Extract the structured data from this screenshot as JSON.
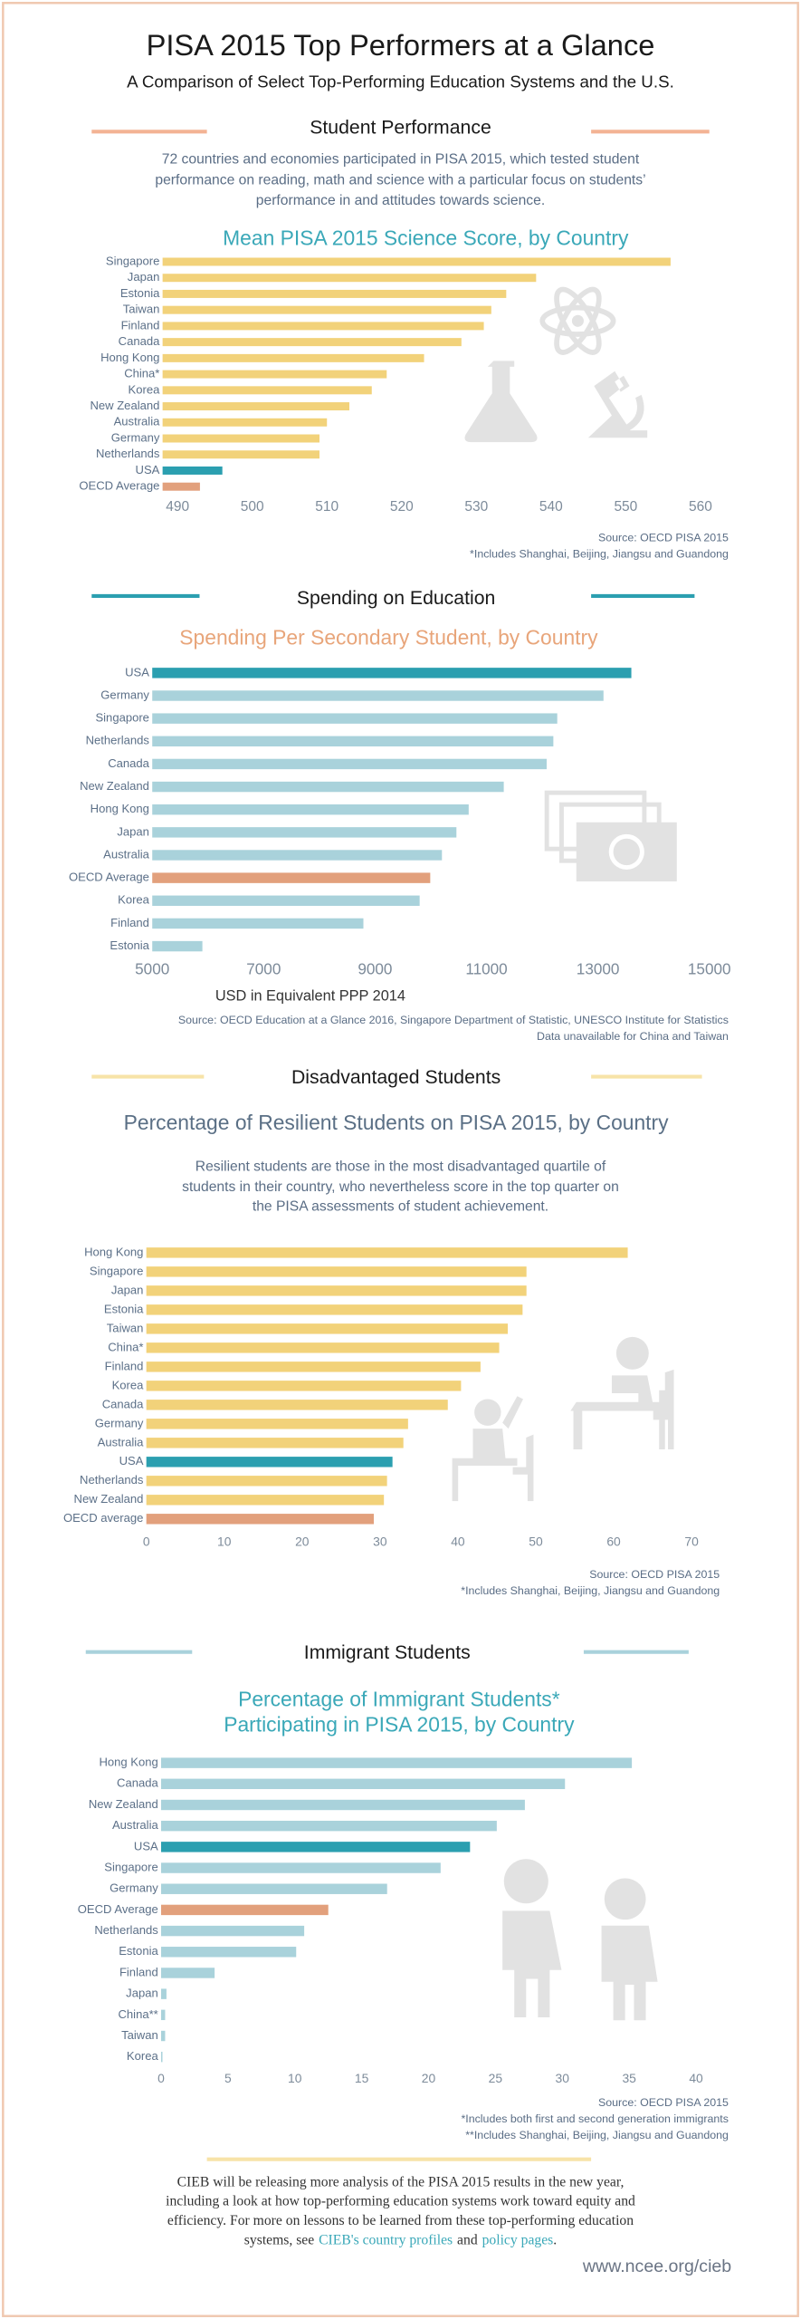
{
  "header": {
    "title": "PISA 2015 Top Performers at a Glance",
    "subtitle": "A Comparison of Select Top-Performing Education Systems and the U.S."
  },
  "sections": [
    {
      "heading": "Student Performance",
      "intro": [
        "72 countries and economies participated in PISA 2015, which tested student",
        "performance on reading, math and science with a particular focus on students’",
        "performance in and attitudes towards science."
      ]
    },
    {
      "heading": "Spending on Education"
    },
    {
      "heading": "Disadvantaged Students"
    },
    {
      "heading": "Immigrant Students"
    }
  ],
  "chart_data": [
    {
      "type": "bar",
      "orientation": "horizontal",
      "title": "Mean PISA 2015 Science Score, by Country",
      "categories": [
        "Singapore",
        "Japan",
        "Estonia",
        "Taiwan",
        "Finland",
        "Canada",
        "Hong Kong",
        "China*",
        "Korea",
        "New Zealand",
        "Australia",
        "Germany",
        "Netherlands",
        "USA",
        "OECD Average"
      ],
      "values": [
        556,
        538,
        534,
        532,
        531,
        528,
        523,
        518,
        516,
        513,
        510,
        509,
        509,
        496,
        493
      ],
      "colors": [
        "#f2d27a",
        "#f2d27a",
        "#f2d27a",
        "#f2d27a",
        "#f2d27a",
        "#f2d27a",
        "#f2d27a",
        "#f2d27a",
        "#f2d27a",
        "#f2d27a",
        "#f2d27a",
        "#f2d27a",
        "#f2d27a",
        "#2b9fb0",
        "#e2a07c"
      ],
      "xlim": [
        488,
        560
      ],
      "xticks": [
        490,
        500,
        510,
        520,
        530,
        540,
        550,
        560
      ],
      "notes": [
        "Source: OECD PISA 2015",
        "*Includes Shanghai, Beijing, Jiangsu and Guandong"
      ]
    },
    {
      "type": "bar",
      "orientation": "horizontal",
      "title": "Spending Per Secondary Student, by Country",
      "categories": [
        "USA",
        "Germany",
        "Singapore",
        "Netherlands",
        "Canada",
        "New Zealand",
        "Hong Kong",
        "Japan",
        "Australia",
        "OECD Average",
        "Korea",
        "Finland",
        "Estonia"
      ],
      "values": [
        13600,
        13100,
        12270,
        12200,
        12080,
        11310,
        10680,
        10460,
        10200,
        9990,
        9800,
        8790,
        5900
      ],
      "colors": [
        "#2b9fb0",
        "#a9d2db",
        "#a9d2db",
        "#a9d2db",
        "#a9d2db",
        "#a9d2db",
        "#a9d2db",
        "#a9d2db",
        "#a9d2db",
        "#e2a07c",
        "#a9d2db",
        "#a9d2db",
        "#a9d2db"
      ],
      "xlim": [
        5000,
        15000
      ],
      "xticks": [
        5000,
        7000,
        9000,
        11000,
        13000,
        15000
      ],
      "x_label": "USD in Equivalent PPP 2014",
      "notes": [
        "Source: OECD Education at a Glance 2016, Singapore Department of Statistic, UNESCO Institute for Statistics",
        "Data unavailable for China and Taiwan"
      ]
    },
    {
      "type": "bar",
      "orientation": "horizontal",
      "title": "Percentage of Resilient Students on PISA 2015, by Country",
      "description": [
        "Resilient students are those in the most disadvantaged quartile of",
        "students in their country, who nevertheless score in the top quarter on",
        "the PISA assessments of student achievement."
      ],
      "categories": [
        "Hong Kong",
        "Singapore",
        "Japan",
        "Estonia",
        "Taiwan",
        "China*",
        "Finland",
        "Korea",
        "Canada",
        "Germany",
        "Australia",
        "USA",
        "Netherlands",
        "New Zealand",
        "OECD average"
      ],
      "values": [
        61.8,
        48.8,
        48.8,
        48.3,
        46.4,
        45.3,
        42.9,
        40.4,
        38.7,
        33.6,
        33.0,
        31.6,
        30.9,
        30.5,
        29.2
      ],
      "colors": [
        "#f2d27a",
        "#f2d27a",
        "#f2d27a",
        "#f2d27a",
        "#f2d27a",
        "#f2d27a",
        "#f2d27a",
        "#f2d27a",
        "#f2d27a",
        "#f2d27a",
        "#f2d27a",
        "#2b9fb0",
        "#f2d27a",
        "#f2d27a",
        "#e2a07c"
      ],
      "xlim": [
        0,
        70
      ],
      "xticks": [
        0,
        10,
        20,
        30,
        40,
        50,
        60,
        70
      ],
      "notes": [
        "Source: OECD PISA 2015",
        "*Includes Shanghai, Beijing, Jiangsu and Guandong"
      ]
    },
    {
      "type": "bar",
      "orientation": "horizontal",
      "title": [
        "Percentage of Immigrant Students*",
        "Participating in PISA 2015, by Country"
      ],
      "categories": [
        "Hong Kong",
        "Canada",
        "New Zealand",
        "Australia",
        "USA",
        "Singapore",
        "Germany",
        "OECD Average",
        "Netherlands",
        "Estonia",
        "Finland",
        "Japan",
        "China**",
        "Taiwan",
        "Korea"
      ],
      "values": [
        35.2,
        30.2,
        27.2,
        25.1,
        23.1,
        20.9,
        16.9,
        12.5,
        10.7,
        10.1,
        4.0,
        0.4,
        0.3,
        0.3,
        0.1
      ],
      "colors": [
        "#a9d2db",
        "#a9d2db",
        "#a9d2db",
        "#a9d2db",
        "#2b9fb0",
        "#a9d2db",
        "#a9d2db",
        "#e2a07c",
        "#a9d2db",
        "#a9d2db",
        "#a9d2db",
        "#a9d2db",
        "#a9d2db",
        "#a9d2db",
        "#a9d2db"
      ],
      "xlim": [
        0,
        40
      ],
      "xticks": [
        0,
        5,
        10,
        15,
        20,
        25,
        30,
        35,
        40
      ],
      "notes": [
        "Source: OECD PISA 2015",
        "*Includes both first and second generation immigrants",
        "**Includes Shanghai, Beijing, Jiangsu and Guandong"
      ]
    }
  ],
  "footer": {
    "lines": [
      "CIEB will be releasing more analysis of the PISA 2015 results in the new year,",
      "including a look at how top-performing education systems work toward equity and",
      "efficiency. For more on lessons to be learned from these top-performing education"
    ],
    "last_start": "systems, see",
    "link1": "CIEB's country profiles",
    "joiner": "and",
    "link2": "policy pages",
    "end": ".",
    "url": "www.ncee.org/cieb"
  }
}
